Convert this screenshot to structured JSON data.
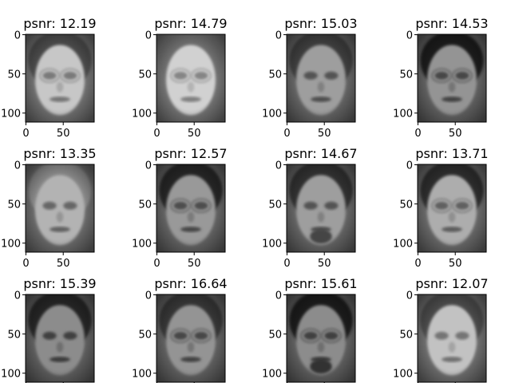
{
  "chart_data": {
    "type": "image-grid",
    "rows": 3,
    "cols": 4,
    "x_ticks": [
      0,
      50
    ],
    "y_ticks": [
      0,
      50,
      100
    ],
    "image_width": 92,
    "image_height": 112,
    "colormap": "gray",
    "panels": [
      {
        "title": "psnr: 12.19",
        "psnr": 12.19,
        "face": {
          "brightness": 0.78,
          "hair": 0.3,
          "glasses": true,
          "beard": false
        }
      },
      {
        "title": "psnr: 14.79",
        "psnr": 14.79,
        "face": {
          "brightness": 0.82,
          "hair": 0.45,
          "glasses": true,
          "beard": false
        }
      },
      {
        "title": "psnr: 15.03",
        "psnr": 15.03,
        "face": {
          "brightness": 0.62,
          "hair": 0.25,
          "glasses": false,
          "beard": false
        }
      },
      {
        "title": "psnr: 14.53",
        "psnr": 14.53,
        "face": {
          "brightness": 0.58,
          "hair": 0.12,
          "glasses": true,
          "beard": false
        }
      },
      {
        "title": "psnr: 13.35",
        "psnr": 13.35,
        "face": {
          "brightness": 0.7,
          "hair": 0.55,
          "glasses": false,
          "beard": false
        }
      },
      {
        "title": "psnr: 12.57",
        "psnr": 12.57,
        "face": {
          "brightness": 0.6,
          "hair": 0.15,
          "glasses": true,
          "beard": false
        }
      },
      {
        "title": "psnr: 14.67",
        "psnr": 14.67,
        "face": {
          "brightness": 0.62,
          "hair": 0.2,
          "glasses": false,
          "beard": true
        }
      },
      {
        "title": "psnr: 13.71",
        "psnr": 13.71,
        "face": {
          "brightness": 0.68,
          "hair": 0.18,
          "glasses": true,
          "beard": false
        }
      },
      {
        "title": "psnr: 15.39",
        "psnr": 15.39,
        "face": {
          "brightness": 0.55,
          "hair": 0.15,
          "glasses": false,
          "beard": false
        }
      },
      {
        "title": "psnr: 16.64",
        "psnr": 16.64,
        "face": {
          "brightness": 0.58,
          "hair": 0.22,
          "glasses": true,
          "beard": false
        }
      },
      {
        "title": "psnr: 15.61",
        "psnr": 15.61,
        "face": {
          "brightness": 0.55,
          "hair": 0.1,
          "glasses": true,
          "beard": true
        }
      },
      {
        "title": "psnr: 12.07",
        "psnr": 12.07,
        "face": {
          "brightness": 0.76,
          "hair": 0.3,
          "glasses": false,
          "beard": false
        }
      }
    ]
  }
}
